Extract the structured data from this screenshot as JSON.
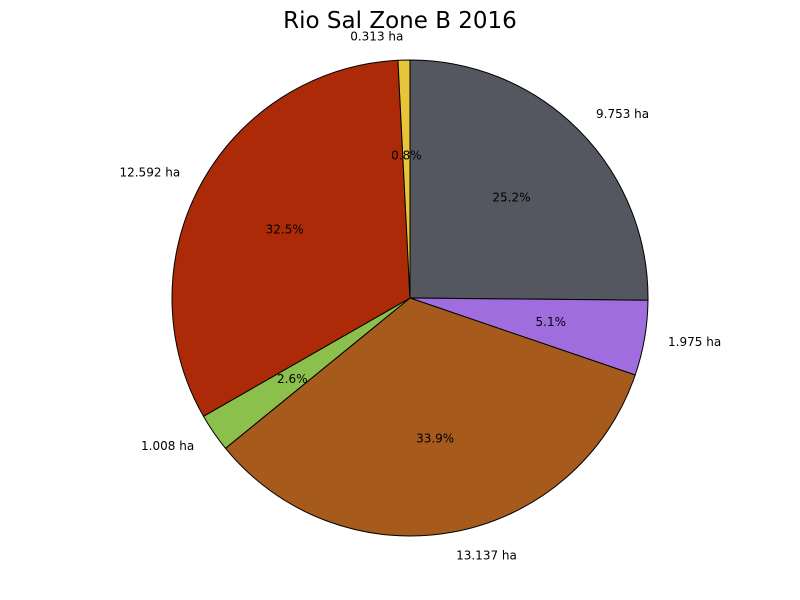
{
  "chart_data": {
    "type": "pie",
    "title": "Rio Sal Zone B 2016",
    "unit": "ha",
    "start_angle_deg": 90,
    "direction": "clockwise",
    "slices": [
      {
        "value": 9.753,
        "label": "9.753 ha",
        "pct_label": "25.2%",
        "color": "#54575f"
      },
      {
        "value": 1.975,
        "label": "1.975 ha",
        "pct_label": "5.1%",
        "color": "#a06ddf"
      },
      {
        "value": 13.137,
        "label": "13.137 ha",
        "pct_label": "33.9%",
        "color": "#a65b1c"
      },
      {
        "value": 1.008,
        "label": "1.008 ha",
        "pct_label": "2.6%",
        "color": "#8bc04d"
      },
      {
        "value": 12.592,
        "label": "12.592 ha",
        "pct_label": "32.5%",
        "color": "#ad2a08"
      },
      {
        "value": 0.313,
        "label": "0.313 ha",
        "pct_label": "0.8%",
        "color": "#e7c53a"
      }
    ],
    "edge_color": "#000000",
    "legend": "none",
    "grid": false
  }
}
